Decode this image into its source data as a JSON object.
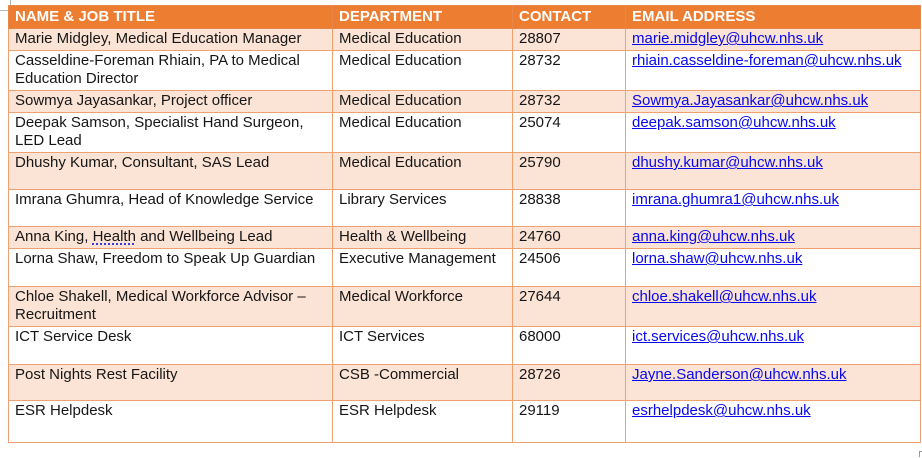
{
  "colors": {
    "header_bg": "#ED7D31",
    "header_text": "#FFFFFF",
    "header_border": "#E8874B",
    "band_row_bg": "#FBE3D5",
    "grid_border": "#F0A170",
    "link_blue": "#0808EE",
    "body_text": "#161616"
  },
  "table": {
    "columns": [
      {
        "label": "NAME & JOB TITLE"
      },
      {
        "label": "DEPARTMENT"
      },
      {
        "label": "CONTACT"
      },
      {
        "label": "EMAIL ADDRESS"
      }
    ],
    "rows": [
      {
        "name": "Marie Midgley, Medical Education Manager",
        "department": "Medical Education",
        "contact": "28807",
        "email": "marie.midgley@uhcw.nhs.uk"
      },
      {
        "name": "Casseldine-Foreman Rhiain, PA to Medical Education Director",
        "department": "Medical Education",
        "contact": "28732",
        "email": "rhiain.casseldine-foreman@uhcw.nhs.uk"
      },
      {
        "name": "Sowmya Jayasankar, Project officer",
        "department": "Medical Education",
        "contact": "28732",
        "email": "Sowmya.Jayasankar@uhcw.nhs.uk"
      },
      {
        "name": "Deepak Samson, Specialist Hand Surgeon, LED Lead",
        "department": "Medical Education",
        "contact": "25074",
        "email": "deepak.samson@uhcw.nhs.uk"
      },
      {
        "name": "Dhushy Kumar, Consultant, SAS Lead",
        "department": "Medical Education",
        "contact": "25790",
        "email": "dhushy.kumar@uhcw.nhs.uk"
      },
      {
        "name": "Imrana Ghumra, Head of Knowledge Service",
        "department": "Library Services",
        "contact": "28838",
        "email": "imrana.ghumra1@uhcw.nhs.uk"
      },
      {
        "name": "Anna King, Health and Wellbeing Lead",
        "department": "Health & Wellbeing",
        "contact": "24760",
        "email": "anna.king@uhcw.nhs.uk",
        "grammar_underlined_word": "Health"
      },
      {
        "name": "Lorna Shaw, Freedom to Speak Up Guardian",
        "department": "Executive Management",
        "contact": "24506",
        "email": "lorna.shaw@uhcw.nhs.uk"
      },
      {
        "name": "Chloe Shakell, Medical Workforce Advisor – Recruitment",
        "department": "Medical Workforce",
        "contact": "27644",
        "email": "chloe.shakell@uhcw.nhs.uk"
      },
      {
        "name": "ICT Service Desk",
        "department": "ICT Services",
        "contact": "68000",
        "email": "ict.services@uhcw.nhs.uk"
      },
      {
        "name": "Post Nights Rest Facility",
        "department": "CSB -Commercial",
        "contact": "28726",
        "email": "Jayne.Sanderson@uhcw.nhs.uk"
      },
      {
        "name": "ESR Helpdesk",
        "department": "ESR Helpdesk",
        "contact": "29119",
        "email": "esrhelpdesk@uhcw.nhs.uk"
      }
    ]
  }
}
